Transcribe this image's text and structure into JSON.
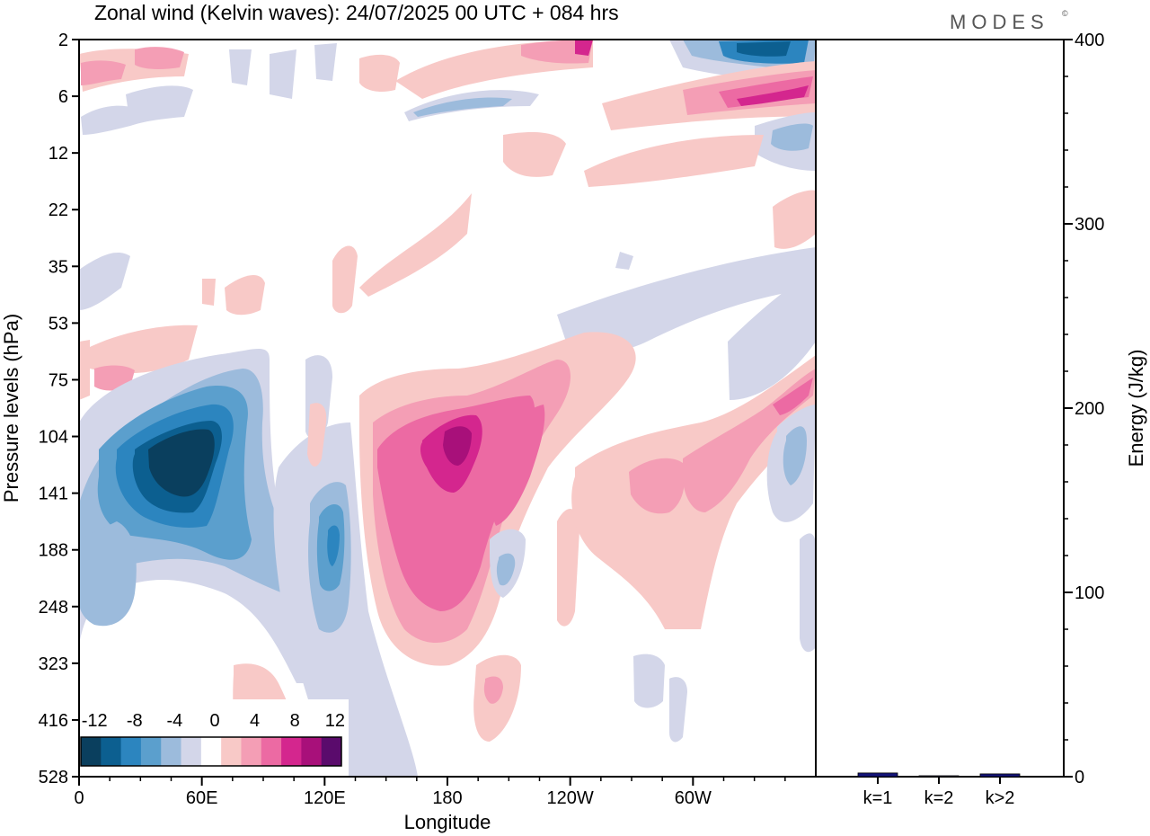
{
  "chart_data": [
    {
      "type": "heatmap",
      "title": "Zonal wind (Kelvin waves):  24/07/2025  00 UTC  + 084 hrs",
      "xlabel": "Longitude",
      "ylabel": "Pressure levels (hPa)",
      "xticks": [
        "0",
        "60E",
        "120E",
        "180",
        "120W",
        "60W"
      ],
      "xtick_lon": [
        0,
        60,
        120,
        180,
        240,
        300
      ],
      "xlim": [
        0,
        360
      ],
      "yticks": [
        "2",
        "6",
        "12",
        "22",
        "35",
        "53",
        "75",
        "104",
        "141",
        "188",
        "248",
        "323",
        "416",
        "528"
      ],
      "colorbar": {
        "labels": [
          "-12",
          "-8",
          "-4",
          "0",
          "4",
          "8",
          "12"
        ],
        "levels": [
          -14,
          -12,
          -10,
          -8,
          -6,
          -4,
          -2,
          2,
          4,
          6,
          8,
          10,
          12,
          14
        ],
        "colors": [
          "#0a3f5e",
          "#0c5f90",
          "#2c85bf",
          "#5b9fcd",
          "#9cbbdc",
          "#d3d6e9",
          "#ffffff",
          "#f8c9c7",
          "#f49eb5",
          "#ec6aa3",
          "#d4268e",
          "#a8107a",
          "#5a0b6c"
        ]
      },
      "features": [
        {
          "name": "negative-core-60E-upper",
          "lon": 52,
          "level": 104,
          "value": -14
        },
        {
          "name": "positive-core-180-upper",
          "lon": 185,
          "level": 104,
          "value": 10
        },
        {
          "name": "negative-core-120E-mid",
          "lon": 122,
          "level": 188,
          "value": -8
        },
        {
          "name": "positive-band-east-pacific",
          "lon": 290,
          "level": 141,
          "value": 4
        },
        {
          "name": "stratosphere-negative-core",
          "lon": 330,
          "level": 2,
          "value": -12
        },
        {
          "name": "stratosphere-positive-core",
          "lon": 340,
          "level": 6,
          "value": 10
        }
      ]
    },
    {
      "type": "bar",
      "categories": [
        "k=1",
        "k=2",
        "k>2"
      ],
      "values": [
        2,
        0.5,
        1.5
      ],
      "ylabel": "Energy (J/kg)",
      "ylim": [
        0,
        400
      ],
      "yticks": [
        "0",
        "100",
        "200",
        "300",
        "400"
      ],
      "bar_color": "#14147a"
    }
  ],
  "brand": {
    "logo": "MODES",
    "mark": "©"
  }
}
